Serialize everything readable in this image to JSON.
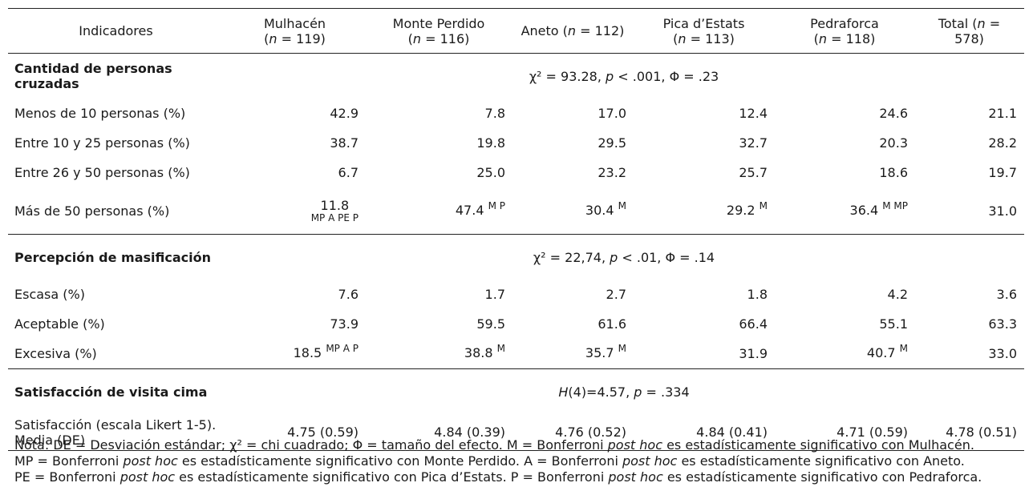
{
  "header": {
    "indicadores": "Indicadores",
    "columns": [
      {
        "name": "Mulhacén",
        "n_prefix": "(",
        "n_italic": "n",
        "n_rest": " = 119)"
      },
      {
        "name": "Monte Perdido",
        "n_prefix": "(",
        "n_italic": "n",
        "n_rest": " = 116)"
      },
      {
        "name": "Aneto (",
        "n_italic": "n",
        "n_rest": " = 112)"
      },
      {
        "name": "Pica d’Estats",
        "n_prefix": "(",
        "n_italic": "n",
        "n_rest": " = 113)"
      },
      {
        "name": "Pedraforca",
        "n_prefix": "(",
        "n_italic": "n",
        "n_rest": " = 118)"
      },
      {
        "name": "Total (",
        "n_italic": "n",
        "n_rest": " = 578)"
      }
    ]
  },
  "sections": [
    {
      "title": "Cantidad de personas cruzadas",
      "stat": {
        "a": "χ² = 93.28, ",
        "p": "p",
        "b": " < .001, Φ = .23"
      },
      "rows": [
        {
          "label": "Menos de 10 personas (%)",
          "values": [
            "42.9",
            "7.8",
            "17.0",
            "12.4",
            "24.6",
            "21.1"
          ],
          "sups": [
            "",
            "",
            "",
            "",
            "",
            ""
          ]
        },
        {
          "label": "Entre 10 y 25 personas (%)",
          "values": [
            "38.7",
            "19.8",
            "29.5",
            "32.7",
            "20.3",
            "28.2"
          ],
          "sups": [
            "",
            "",
            "",
            "",
            "",
            ""
          ]
        },
        {
          "label": "Entre 26 y 50 personas (%)",
          "values": [
            "6.7",
            "25.0",
            "23.2",
            "25.7",
            "18.6",
            "19.7"
          ],
          "sups": [
            "",
            "",
            "",
            "",
            "",
            ""
          ]
        },
        {
          "label": "Más de 50 personas (%)",
          "values": [
            "11.8",
            "47.4",
            "30.4",
            "29.2",
            "36.4",
            "31.0"
          ],
          "sups": [
            "MP A PE P",
            "M P",
            "M",
            "M",
            "M MP",
            ""
          ]
        }
      ]
    },
    {
      "title": "Percepción de masificación",
      "stat": {
        "a": "χ² = 22,74, ",
        "p": "p",
        "b": " < .01, Φ = .14"
      },
      "rows": [
        {
          "label": "Escasa (%)",
          "values": [
            "7.6",
            "1.7",
            "2.7",
            "1.8",
            "4.2",
            "3.6"
          ],
          "sups": [
            "",
            "",
            "",
            "",
            "",
            ""
          ]
        },
        {
          "label": "Aceptable (%)",
          "values": [
            "73.9",
            "59.5",
            "61.6",
            "66.4",
            "55.1",
            "63.3"
          ],
          "sups": [
            "",
            "",
            "",
            "",
            "",
            ""
          ]
        },
        {
          "label": "Excesiva (%)",
          "values": [
            "18.5",
            "38.8",
            "35.7",
            "31.9",
            "40.7",
            "33.0"
          ],
          "sups": [
            "MP A P",
            "M",
            "M",
            "",
            "M",
            ""
          ]
        }
      ]
    },
    {
      "title": "Satisfacción de visita cima",
      "stat": {
        "h": "H",
        "a": "(4)=4.57, ",
        "p": "p",
        "b": " = .334"
      },
      "rows": [
        {
          "label": "Satisfacción (escala Likert 1-5). Media (DE)",
          "values": [
            "4.75 (0.59)",
            "4.84 (0.39)",
            "4.76 (0.52)",
            "4.84 (0.41)",
            "4.71 (0.59)",
            "4.78 (0.51)"
          ],
          "sups": [
            "",
            "",
            "",
            "",
            "",
            ""
          ]
        }
      ]
    }
  ],
  "note": {
    "l1a": "Nota: DE = Desviación estándar; χ² = chi cuadrado; Φ = tamaño del efecto. M = Bonferroni ",
    "ph": "post hoc",
    "l1b": " es estadísticamente significativo con Mulhacén.",
    "l2a": "MP = Bonferroni ",
    "l2b": " es estadísticamente significativo con Monte Perdido. A = Bonferroni ",
    "l2c": " es estadísticamente significativo con Aneto.",
    "l3a": "PE = Bonferroni ",
    "l3b": " es estadísticamente significativo con Pica d’Estats. P = Bonferroni ",
    "l3c": " es estadísticamente significativo con Pedraforca."
  }
}
